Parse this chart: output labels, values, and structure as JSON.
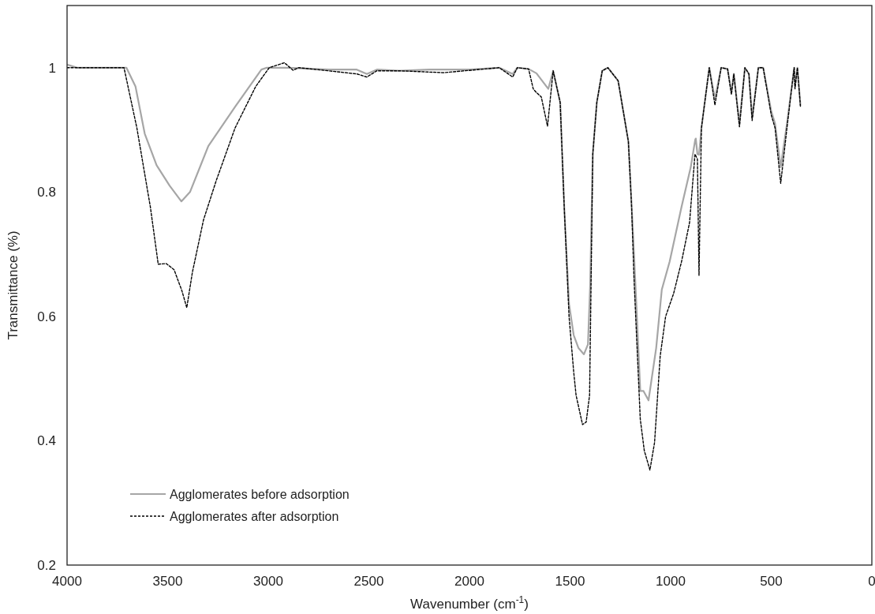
{
  "chart_data": {
    "type": "line",
    "xlabel": "Wavenumber (cm$^{-1}$)",
    "ylabel": "Transmittance (%)",
    "xlim": [
      4000,
      0
    ],
    "ylim": [
      0.2,
      1.1
    ],
    "xticks": [
      4000,
      3500,
      3000,
      2500,
      2000,
      1500,
      1000,
      500,
      0
    ],
    "yticks": [
      0.2,
      0.4,
      0.6,
      0.8,
      1
    ],
    "legend": "bottom left",
    "grid": false,
    "series": [
      {
        "name": "Agglomerates before adsorption",
        "color": "#a6a6a6",
        "line_style": "solid",
        "x": [
          4000,
          3950,
          3800,
          3705,
          3660,
          3614,
          3555,
          3490,
          3432,
          3389,
          3298,
          3165,
          3034,
          3007,
          2900,
          2700,
          2560,
          2510,
          2460,
          2353,
          2200,
          2000,
          1852,
          1785,
          1762,
          1706,
          1667,
          1608,
          1584,
          1549,
          1529,
          1505,
          1482,
          1458,
          1431,
          1411,
          1400,
          1387,
          1367,
          1340,
          1312,
          1261,
          1210,
          1182,
          1151,
          1135,
          1110,
          1072,
          1044,
          1005,
          946,
          900,
          878,
          875,
          867,
          859,
          847,
          808,
          780,
          749,
          717,
          698,
          686,
          658,
          631,
          611,
          595,
          564,
          540,
          500,
          481,
          453,
          422,
          386,
          382,
          370,
          355
        ],
        "values": [
          1.005,
          1.0,
          1.0,
          1.0,
          0.97,
          0.894,
          0.843,
          0.81,
          0.785,
          0.8,
          0.874,
          0.937,
          0.997,
          1.0,
          1.0,
          0.997,
          0.997,
          0.99,
          0.997,
          0.995,
          0.997,
          0.997,
          1.0,
          0.99,
          1.0,
          0.998,
          0.991,
          0.966,
          0.995,
          0.944,
          0.776,
          0.62,
          0.57,
          0.549,
          0.539,
          0.555,
          0.65,
          0.861,
          0.944,
          0.995,
          1.0,
          0.979,
          0.881,
          0.7,
          0.48,
          0.48,
          0.465,
          0.549,
          0.643,
          0.688,
          0.776,
          0.84,
          0.884,
          0.886,
          0.861,
          0.86,
          0.903,
          1.0,
          0.95,
          1.0,
          0.998,
          0.96,
          0.99,
          0.91,
          1.0,
          0.99,
          0.92,
          1.0,
          1.0,
          0.93,
          0.91,
          0.84,
          0.91,
          1.0,
          0.97,
          1.0,
          0.94
        ]
      },
      {
        "name": "Agglomerates after adsorption",
        "color": "#000000",
        "line_style": "dashed",
        "x": [
          4000,
          3950,
          3800,
          3717,
          3653,
          3586,
          3547,
          3507,
          3468,
          3429,
          3405,
          3377,
          3322,
          3259,
          3165,
          3062,
          2995,
          2920,
          2877,
          2849,
          2700,
          2560,
          2510,
          2460,
          2345,
          2128,
          1852,
          1785,
          1762,
          1706,
          1683,
          1667,
          1643,
          1612,
          1584,
          1549,
          1529,
          1505,
          1482,
          1470,
          1438,
          1420,
          1403,
          1387,
          1367,
          1340,
          1312,
          1261,
          1210,
          1194,
          1182,
          1151,
          1131,
          1103,
          1080,
          1052,
          1025,
          985,
          946,
          906,
          879,
          867,
          859,
          847,
          808,
          780,
          749,
          717,
          698,
          686,
          658,
          631,
          611,
          595,
          564,
          540,
          500,
          481,
          453,
          422,
          386,
          382,
          370,
          355
        ],
        "values": [
          1.0,
          1.0,
          1.0,
          1.0,
          0.903,
          0.776,
          0.684,
          0.685,
          0.675,
          0.641,
          0.614,
          0.671,
          0.755,
          0.818,
          0.903,
          0.97,
          1.0,
          1.008,
          0.996,
          1.0,
          0.995,
          0.99,
          0.985,
          0.995,
          0.995,
          0.992,
          1.0,
          0.985,
          1.0,
          0.998,
          0.966,
          0.96,
          0.953,
          0.906,
          0.995,
          0.944,
          0.776,
          0.6,
          0.511,
          0.473,
          0.426,
          0.43,
          0.473,
          0.861,
          0.944,
          0.995,
          1.0,
          0.979,
          0.881,
          0.776,
          0.66,
          0.435,
          0.384,
          0.353,
          0.397,
          0.536,
          0.6,
          0.637,
          0.688,
          0.751,
          0.861,
          0.853,
          0.666,
          0.903,
          1.0,
          0.94,
          1.0,
          0.998,
          0.957,
          0.99,
          0.905,
          1.0,
          0.99,
          0.915,
          1.0,
          1.0,
          0.924,
          0.903,
          0.814,
          0.903,
          1.0,
          0.966,
          1.0,
          0.938
        ]
      }
    ]
  }
}
